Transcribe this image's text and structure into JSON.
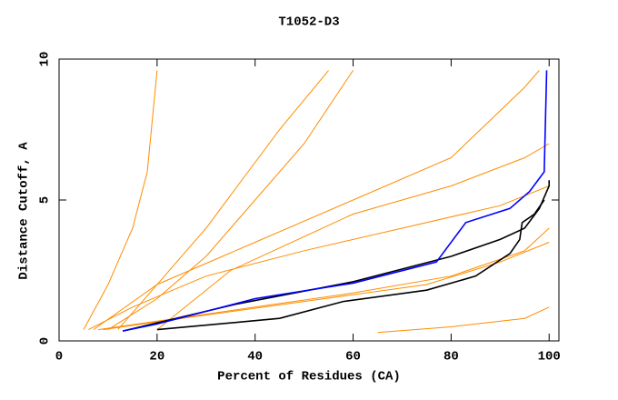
{
  "chart_data": {
    "type": "line",
    "title": "T1052-D3",
    "x_label": "Percent of Residues (CA)",
    "y_label": "Distance Cutoff, A",
    "xlim": [
      0,
      102
    ],
    "ylim": [
      0,
      10
    ],
    "xticks": [
      0,
      20,
      40,
      60,
      80,
      100
    ],
    "yticks": [
      0,
      5,
      10
    ],
    "series": [
      {
        "color": "#ff8c00",
        "x": [
          6,
          15,
          30,
          50,
          70,
          90,
          100
        ],
        "values": [
          0.4,
          1.2,
          2.3,
          3.2,
          4.0,
          4.8,
          5.5
        ]
      },
      {
        "color": "#ff8c00",
        "x": [
          8,
          20,
          40,
          60,
          80,
          95,
          100
        ],
        "values": [
          0.4,
          0.7,
          1.2,
          1.7,
          2.3,
          3.2,
          4.0
        ]
      },
      {
        "color": "#ff8c00",
        "x": [
          5,
          10,
          15,
          18,
          20
        ],
        "values": [
          0.4,
          2.0,
          4.0,
          6.0,
          9.6
        ]
      },
      {
        "color": "#ff8c00",
        "x": [
          10,
          20,
          30,
          40,
          50,
          60
        ],
        "values": [
          0.4,
          1.5,
          3.0,
          5.0,
          7.0,
          9.6
        ]
      },
      {
        "color": "#ff8c00",
        "x": [
          7,
          20,
          40,
          60,
          80,
          95,
          98
        ],
        "values": [
          0.4,
          2.0,
          3.5,
          5.0,
          6.5,
          9.0,
          9.6
        ]
      },
      {
        "color": "#ff8c00",
        "x": [
          65,
          80,
          95,
          100
        ],
        "values": [
          0.3,
          0.5,
          0.8,
          1.2
        ]
      },
      {
        "color": "#ff8c00",
        "x": [
          9,
          25,
          50,
          75,
          90,
          100
        ],
        "values": [
          0.4,
          0.8,
          1.4,
          2.0,
          2.8,
          3.5
        ]
      },
      {
        "color": "#ff8c00",
        "x": [
          12,
          30,
          45,
          55
        ],
        "values": [
          0.4,
          4.0,
          7.5,
          9.6
        ]
      },
      {
        "color": "#ff8c00",
        "x": [
          20,
          35,
          60,
          80,
          95,
          100
        ],
        "values": [
          0.4,
          2.5,
          4.5,
          5.5,
          6.5,
          7.0
        ]
      },
      {
        "color": "#000000",
        "x": [
          13,
          36,
          60,
          80,
          90,
          95,
          98,
          100,
          100
        ],
        "values": [
          0.35,
          1.3,
          2.1,
          3.0,
          3.6,
          4.0,
          4.7,
          5.5,
          5.7
        ]
      },
      {
        "color": "#000000",
        "x": [
          20,
          45,
          58,
          75,
          85,
          92,
          94,
          94.5,
          97,
          99
        ],
        "values": [
          0.4,
          0.8,
          1.4,
          1.8,
          2.3,
          3.1,
          3.6,
          4.2,
          4.5,
          5.0
        ]
      },
      {
        "color": "#0000ff",
        "x": [
          13,
          20,
          40,
          60,
          77,
          83,
          92,
          96,
          99,
          99.5
        ],
        "values": [
          0.35,
          0.6,
          1.5,
          2.05,
          2.8,
          4.2,
          4.7,
          5.3,
          6.0,
          9.6
        ]
      }
    ]
  }
}
